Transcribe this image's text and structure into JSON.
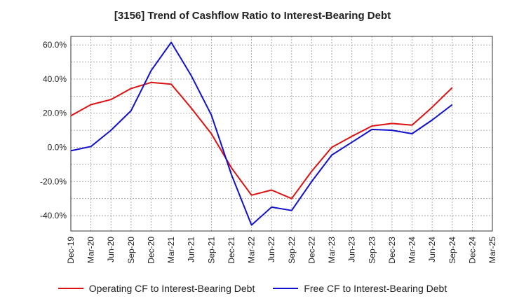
{
  "chart_data": {
    "type": "line",
    "title": "[3156]  Trend of Cashflow Ratio to Interest-Bearing Debt",
    "x": [
      "Dec-19",
      "Mar-20",
      "Jun-20",
      "Sep-20",
      "Dec-20",
      "Mar-21",
      "Jun-21",
      "Sep-21",
      "Dec-21",
      "Mar-22",
      "Jun-22",
      "Sep-22",
      "Dec-22",
      "Mar-23",
      "Jun-23",
      "Sep-23",
      "Dec-23",
      "Mar-24",
      "Jun-24",
      "Sep-24",
      "Dec-24",
      "Mar-25"
    ],
    "y_ticks": [
      60,
      40,
      20,
      0,
      -20,
      -40
    ],
    "y_tick_labels": [
      "60.0%",
      "40.0%",
      "20.0%",
      "0.0%",
      "-20.0%",
      "-40.0%"
    ],
    "ylim": [
      -49,
      65
    ],
    "grid": true,
    "legend_position": "bottom",
    "series": [
      {
        "name": "Operating CF to Interest-Bearing Debt",
        "color": "#dd1111",
        "values": [
          18.5,
          25,
          28,
          34.5,
          38,
          37,
          23,
          8,
          -12,
          -28,
          -25,
          -30,
          -14,
          0,
          6.5,
          12.5,
          14,
          13,
          23.5,
          35,
          null,
          null
        ]
      },
      {
        "name": "Free CF to Interest-Bearing Debt",
        "color": "#1111cc",
        "values": [
          -2,
          0.5,
          10,
          21.5,
          45,
          61.5,
          42,
          19,
          -16,
          -45.5,
          -35,
          -37,
          -20,
          -4.5,
          3,
          10.5,
          10,
          8,
          16,
          25,
          null,
          null
        ]
      }
    ]
  }
}
